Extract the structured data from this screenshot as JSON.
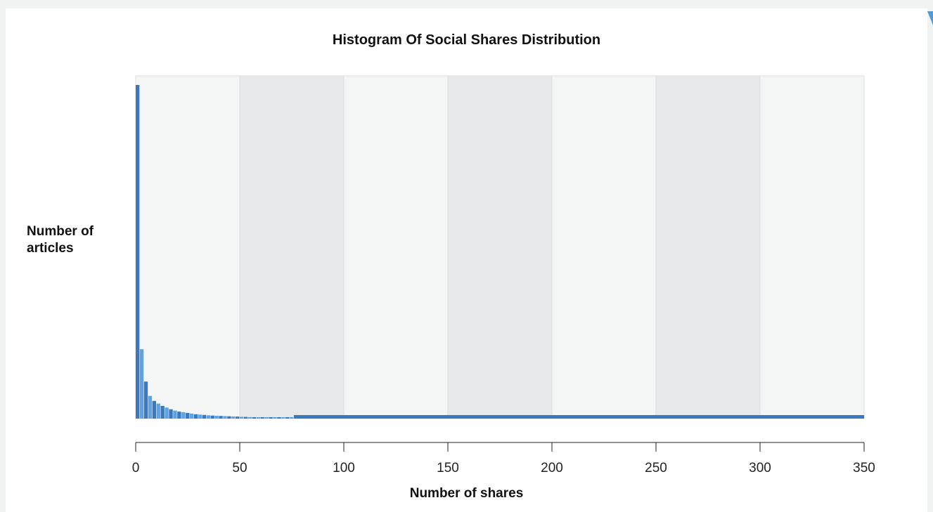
{
  "colors": {
    "bar_dark": "#3a79bd",
    "bar_light": "#5ca3e6",
    "band_light": "#f4f5f5",
    "band_dark": "#e8e9ea",
    "accent": "#4f9ad8"
  },
  "chart_data": {
    "type": "bar",
    "title": "Histogram Of Social Shares Distribution",
    "xlabel": "Number of shares",
    "ylabel": "Number of articles",
    "xlim": [
      0,
      350
    ],
    "ylim": [
      0,
      100
    ],
    "x_ticks": [
      "0",
      "50",
      "100",
      "150",
      "200",
      "250",
      "300",
      "350"
    ],
    "grid": "alternating vertical bands",
    "bin_width": 2,
    "bins": [
      {
        "x": 0,
        "y": 100
      },
      {
        "x": 2,
        "y": 20.8
      },
      {
        "x": 4,
        "y": 11.1
      },
      {
        "x": 6,
        "y": 6.8
      },
      {
        "x": 8,
        "y": 5.3
      },
      {
        "x": 10,
        "y": 4.5
      },
      {
        "x": 12,
        "y": 3.8
      },
      {
        "x": 14,
        "y": 3.3
      },
      {
        "x": 16,
        "y": 2.8
      },
      {
        "x": 18,
        "y": 2.4
      },
      {
        "x": 20,
        "y": 2.1
      },
      {
        "x": 22,
        "y": 1.9
      },
      {
        "x": 24,
        "y": 1.7
      },
      {
        "x": 26,
        "y": 1.5
      },
      {
        "x": 28,
        "y": 1.3
      },
      {
        "x": 30,
        "y": 1.2
      },
      {
        "x": 32,
        "y": 1.1
      },
      {
        "x": 34,
        "y": 1.0
      },
      {
        "x": 36,
        "y": 0.9
      },
      {
        "x": 38,
        "y": 0.85
      },
      {
        "x": 40,
        "y": 0.8
      },
      {
        "x": 42,
        "y": 0.75
      },
      {
        "x": 44,
        "y": 0.7
      },
      {
        "x": 46,
        "y": 0.65
      },
      {
        "x": 48,
        "y": 0.6
      },
      {
        "x": 50,
        "y": 0.55
      },
      {
        "x": 52,
        "y": 0.5
      },
      {
        "x": 54,
        "y": 0.45
      },
      {
        "x": 56,
        "y": 0.42
      },
      {
        "x": 58,
        "y": 0.4
      },
      {
        "x": 60,
        "y": 0.38
      },
      {
        "x": 62,
        "y": 0.35
      },
      {
        "x": 64,
        "y": 0.3
      },
      {
        "x": 66,
        "y": 0.25
      },
      {
        "x": 68,
        "y": 0.22
      },
      {
        "x": 70,
        "y": 0.2
      },
      {
        "x": 72,
        "y": 0.18
      },
      {
        "x": 74,
        "y": 0.15
      }
    ],
    "tail": {
      "x_start": 76,
      "x_end": 350,
      "y": 0.1
    }
  }
}
